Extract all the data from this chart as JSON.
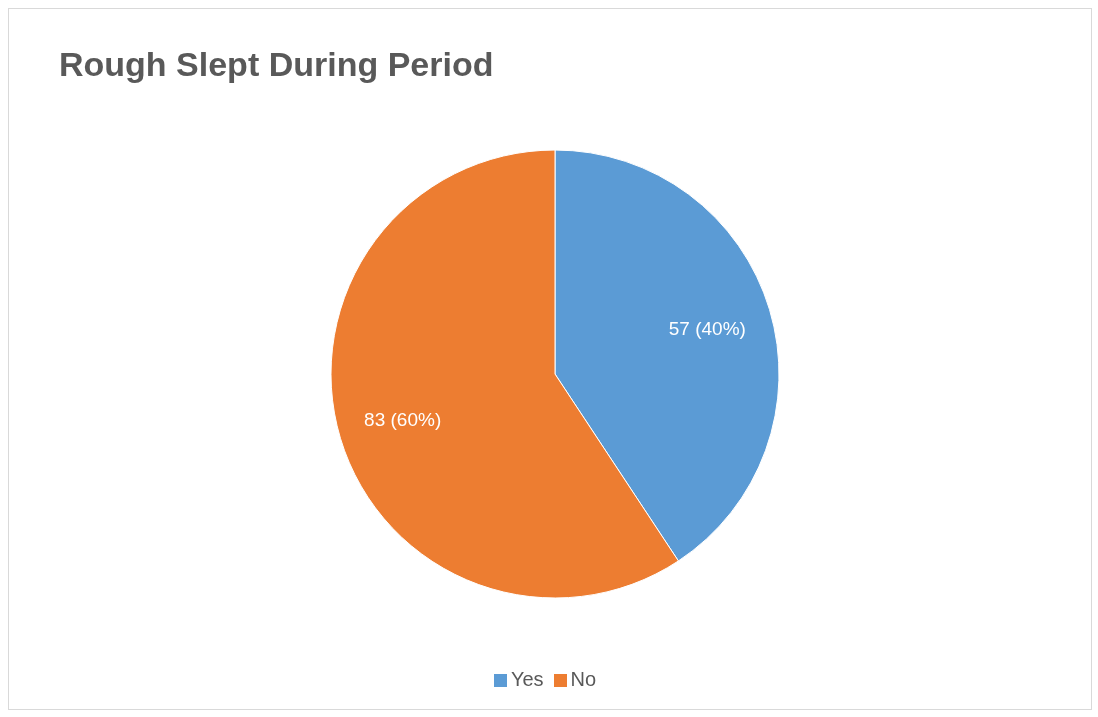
{
  "chart_data": {
    "type": "pie",
    "title": "Rough Slept During Period",
    "categories": [
      "Yes",
      "No"
    ],
    "values": [
      57,
      83
    ],
    "colors": [
      "#5b9bd5",
      "#ed7d31"
    ],
    "value_labels": [
      "57 (40%)",
      "83 (60%)"
    ],
    "legend": "bottom"
  }
}
